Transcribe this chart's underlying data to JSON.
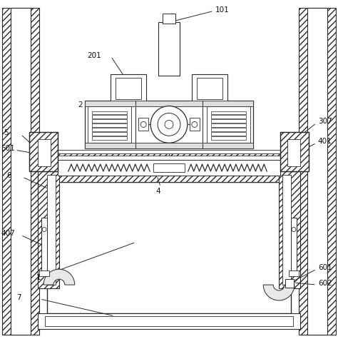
{
  "bg_color": "#ffffff",
  "lc": "#2a2a2a",
  "fig_width": 4.74,
  "fig_height": 4.82,
  "dpi": 100,
  "font_size": 7.5,
  "label_color": "#111111"
}
